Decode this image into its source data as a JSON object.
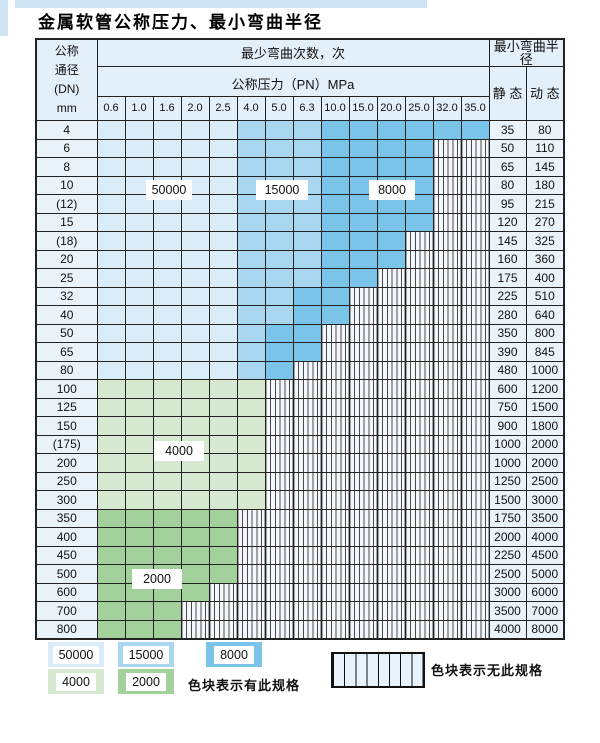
{
  "title": "金属软管公称压力、最小弯曲半径",
  "table": {
    "header": {
      "dn_label_lines": [
        "公称",
        "通径",
        "(DN)",
        "mm"
      ],
      "cycles_label": "最少弯曲次数，次",
      "pressure_label": "公称压力（PN）MPa",
      "radius_label": "最小弯曲半径",
      "static_label": "静 态",
      "dynamic_label": "动 态",
      "pressures": [
        "0.6",
        "1.0",
        "1.6",
        "2.0",
        "2.5",
        "4.0",
        "5.0",
        "6.3",
        "10.0",
        "15.0",
        "20.0",
        "25.0",
        "32.0",
        "35.0"
      ]
    },
    "zone_key": {
      "a": "50000",
      "b": "15000",
      "c": "8000",
      "d": "4000",
      "e": "2000",
      "h": "无此规格"
    },
    "rows": [
      {
        "dn": "4",
        "static": "35",
        "dynamic": "80",
        "zones": [
          [
            "a",
            5
          ],
          [
            "b",
            3
          ],
          [
            "c",
            6
          ]
        ]
      },
      {
        "dn": "6",
        "static": "50",
        "dynamic": "110",
        "zones": [
          [
            "a",
            5
          ],
          [
            "b",
            3
          ],
          [
            "c",
            4
          ]
        ]
      },
      {
        "dn": "8",
        "static": "65",
        "dynamic": "145",
        "zones": [
          [
            "a",
            5
          ],
          [
            "b",
            3
          ],
          [
            "c",
            4
          ]
        ]
      },
      {
        "dn": "10",
        "static": "80",
        "dynamic": "180",
        "zones": [
          [
            "a",
            5
          ],
          [
            "b",
            3
          ],
          [
            "c",
            4
          ]
        ]
      },
      {
        "dn": "(12)",
        "static": "95",
        "dynamic": "215",
        "zones": [
          [
            "a",
            5
          ],
          [
            "b",
            3
          ],
          [
            "c",
            4
          ]
        ]
      },
      {
        "dn": "15",
        "static": "120",
        "dynamic": "270",
        "zones": [
          [
            "a",
            5
          ],
          [
            "b",
            3
          ],
          [
            "c",
            4
          ]
        ]
      },
      {
        "dn": "(18)",
        "static": "145",
        "dynamic": "325",
        "zones": [
          [
            "a",
            5
          ],
          [
            "b",
            3
          ],
          [
            "c",
            3
          ]
        ]
      },
      {
        "dn": "20",
        "static": "160",
        "dynamic": "360",
        "zones": [
          [
            "a",
            5
          ],
          [
            "b",
            3
          ],
          [
            "c",
            3
          ]
        ]
      },
      {
        "dn": "25",
        "static": "175",
        "dynamic": "400",
        "zones": [
          [
            "a",
            5
          ],
          [
            "b",
            3
          ],
          [
            "c",
            2
          ]
        ]
      },
      {
        "dn": "32",
        "static": "225",
        "dynamic": "510",
        "zones": [
          [
            "a",
            5
          ],
          [
            "b",
            2
          ],
          [
            "c",
            2
          ]
        ]
      },
      {
        "dn": "40",
        "static": "280",
        "dynamic": "640",
        "zones": [
          [
            "a",
            5
          ],
          [
            "b",
            2
          ],
          [
            "c",
            2
          ]
        ]
      },
      {
        "dn": "50",
        "static": "350",
        "dynamic": "800",
        "zones": [
          [
            "a",
            5
          ],
          [
            "b",
            1
          ],
          [
            "c",
            2
          ]
        ]
      },
      {
        "dn": "65",
        "static": "390",
        "dynamic": "845",
        "zones": [
          [
            "a",
            5
          ],
          [
            "b",
            1
          ],
          [
            "c",
            2
          ]
        ]
      },
      {
        "dn": "80",
        "static": "480",
        "dynamic": "1000",
        "zones": [
          [
            "a",
            5
          ],
          [
            "b",
            1
          ],
          [
            "c",
            1
          ]
        ]
      },
      {
        "dn": "100",
        "static": "600",
        "dynamic": "1200",
        "zones": [
          [
            "d",
            6
          ]
        ]
      },
      {
        "dn": "125",
        "static": "750",
        "dynamic": "1500",
        "zones": [
          [
            "d",
            6
          ]
        ]
      },
      {
        "dn": "150",
        "static": "900",
        "dynamic": "1800",
        "zones": [
          [
            "d",
            6
          ]
        ]
      },
      {
        "dn": "(175)",
        "static": "1000",
        "dynamic": "2000",
        "zones": [
          [
            "d",
            6
          ]
        ]
      },
      {
        "dn": "200",
        "static": "1000",
        "dynamic": "2000",
        "zones": [
          [
            "d",
            6
          ]
        ]
      },
      {
        "dn": "250",
        "static": "1250",
        "dynamic": "2500",
        "zones": [
          [
            "d",
            6
          ]
        ]
      },
      {
        "dn": "300",
        "static": "1500",
        "dynamic": "3000",
        "zones": [
          [
            "d",
            6
          ]
        ]
      },
      {
        "dn": "350",
        "static": "1750",
        "dynamic": "3500",
        "zones": [
          [
            "e",
            5
          ]
        ]
      },
      {
        "dn": "400",
        "static": "2000",
        "dynamic": "4000",
        "zones": [
          [
            "e",
            5
          ]
        ]
      },
      {
        "dn": "450",
        "static": "2250",
        "dynamic": "4500",
        "zones": [
          [
            "e",
            5
          ]
        ]
      },
      {
        "dn": "500",
        "static": "2500",
        "dynamic": "5000",
        "zones": [
          [
            "e",
            5
          ]
        ]
      },
      {
        "dn": "600",
        "static": "3000",
        "dynamic": "6000",
        "zones": [
          [
            "e",
            4
          ]
        ]
      },
      {
        "dn": "700",
        "static": "3500",
        "dynamic": "7000",
        "zones": [
          [
            "e",
            3
          ]
        ]
      },
      {
        "dn": "800",
        "static": "4000",
        "dynamic": "8000",
        "zones": [
          [
            "e",
            3
          ]
        ]
      }
    ]
  },
  "overlay_labels": {
    "l50000": "50000",
    "l15000": "15000",
    "l8000": "8000",
    "l4000": "4000",
    "l2000": "2000"
  },
  "legend": {
    "swatches": [
      {
        "value": "50000"
      },
      {
        "value": "15000"
      },
      {
        "value": "8000"
      },
      {
        "value": "4000"
      },
      {
        "value": "2000"
      }
    ],
    "has_spec_note": "色块表示有此规格",
    "no_spec_note": "色块表示无此规格"
  },
  "colors": {
    "cycles_50000": "#d9ecf8",
    "cycles_15000": "#a9d7f0",
    "cycles_8000": "#7bc4e9",
    "cycles_4000": "#d6e8d0",
    "cycles_2000": "#a2d19b",
    "hatch_bg": "#f4f8fc",
    "header_bg": "#e3eff9",
    "label_bg": "#eaf3fa",
    "border": "#232323"
  }
}
